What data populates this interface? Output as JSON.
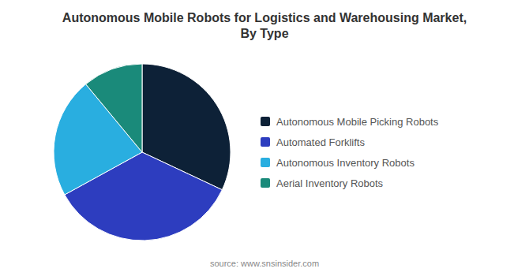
{
  "chart_data": {
    "type": "pie",
    "title": "Autonomous Mobile Robots for Logistics and Warehousing Market,\nBy Type",
    "categories": [
      "Autonomous Mobile Picking Robots",
      "Automated Forklifts",
      "Autonomous Inventory Robots",
      "Aerial Inventory Robots"
    ],
    "values": [
      32,
      35,
      22,
      11
    ],
    "colors": [
      "#0d2137",
      "#2d3dbf",
      "#29aee0",
      "#1a8a7a"
    ],
    "legend": "right",
    "annotations": [
      "source: www.snsinsider.com"
    ]
  }
}
